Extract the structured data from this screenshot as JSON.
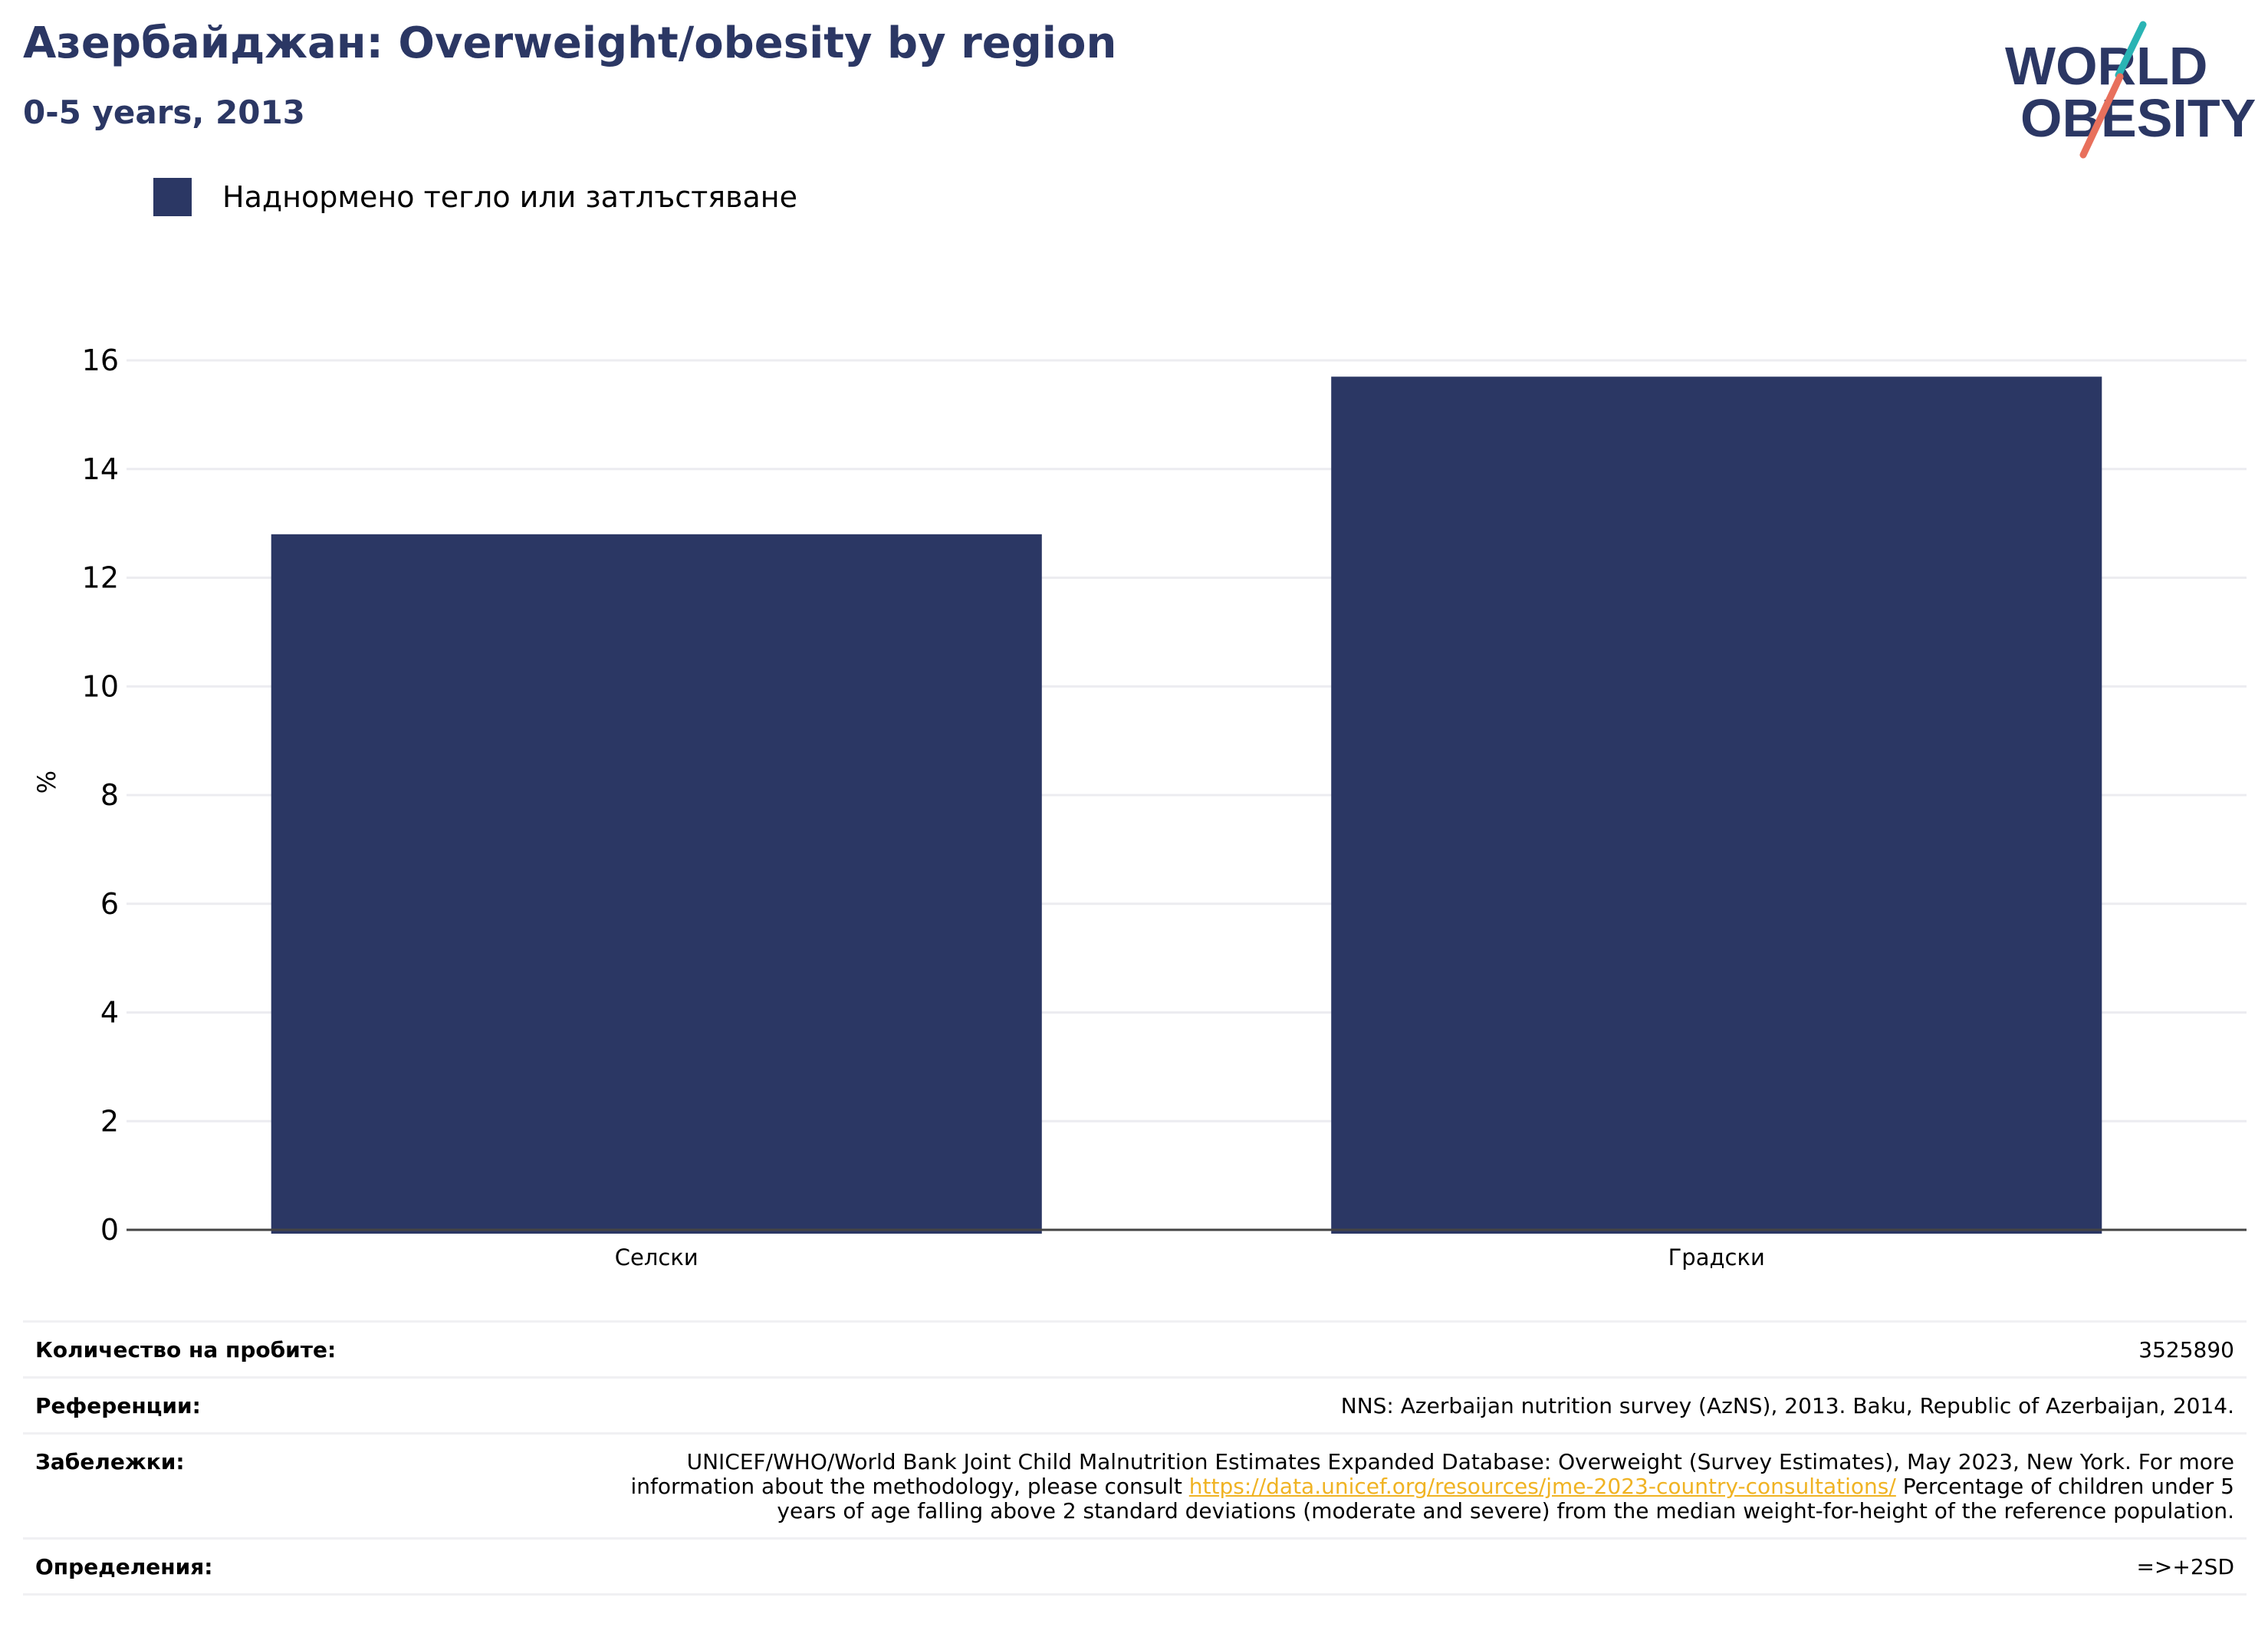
{
  "header": {
    "title": "Азербайджан: Overweight/obesity by region",
    "subtitle": "0-5 years, 2013"
  },
  "logo": {
    "line1": "WORLD",
    "line2": "OBESITY"
  },
  "chart_data": {
    "type": "bar",
    "categories": [
      "Селски",
      "Градски"
    ],
    "series": [
      {
        "name": "Наднормено тегло или затлъстяване",
        "values": [
          12.8,
          15.7
        ],
        "color": "#2b3764"
      }
    ],
    "ylabel": "%",
    "ylim": [
      0,
      16
    ],
    "yticks": [
      0,
      2,
      4,
      6,
      8,
      10,
      12,
      14,
      16
    ],
    "grid": true,
    "legend": "top-left"
  },
  "info": {
    "sample_label": "Количество на пробите:",
    "sample_value": "3525890",
    "references_label": "Референции:",
    "references_value": "NNS: Azerbaijan nutrition survey (AzNS), 2013. Baku, Republic of Azerbaijan, 2014.",
    "notes_label": "Забележки:",
    "notes_before": "UNICEF/WHO/World Bank Joint Child Malnutrition Estimates Expanded Database: Overweight (Survey Estimates), May 2023, New York. For more information about the methodology, please consult ",
    "notes_link": "https://data.unicef.org/resources/jme-2023-country-consultations/",
    "notes_after": " Percentage of children under 5 years of age falling above 2 standard deviations (moderate and severe) from the median weight-for-height of the reference population.",
    "definitions_label": "Определения:",
    "definitions_value": "=>+2SD"
  },
  "colors": {
    "navy": "#2b3764",
    "teal": "#2ab4b4",
    "coral": "#e8705c",
    "link": "#f0b323"
  }
}
